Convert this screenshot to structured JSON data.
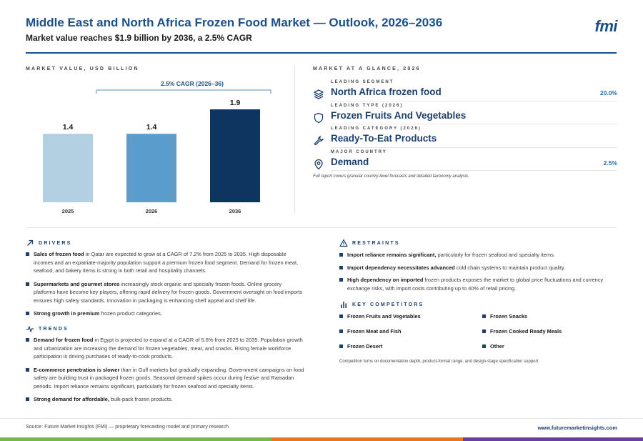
{
  "header": {
    "title": "Middle East and North Africa Frozen Food Market — Outlook, 2026–2036",
    "subtitle": "Market value reaches $1.9 billion by 2036, a 2.5% CAGR",
    "logo": "fmi"
  },
  "chart_section_label": "MARKET VALUE, USD BILLION",
  "chart_data": {
    "type": "bar",
    "categories": [
      "2025",
      "2026",
      "2036"
    ],
    "values": [
      1.4,
      1.4,
      1.9
    ],
    "value_labels": [
      "1.4",
      "1.4",
      "1.9"
    ],
    "colors": [
      "#b3cfe2",
      "#5a9ccb",
      "#0e3560"
    ],
    "annotation": "2.5% CAGR (2026–36)",
    "ylim": [
      0,
      1.9
    ],
    "title": "",
    "xlabel": "",
    "ylabel": ""
  },
  "glance": {
    "section_label": "MARKET AT A GLANCE, 2026",
    "items": [
      {
        "label": "LEADING SEGMENT",
        "value": "North Africa frozen food",
        "metric": "20.0%",
        "icon": "layers-icon"
      },
      {
        "label": "LEADING TYPE (2026)",
        "value": "Frozen Fruits And Vegetables",
        "metric": "",
        "icon": "shield-icon"
      },
      {
        "label": "LEADING CATEGORY (2026)",
        "value": "Ready-To-Eat Products",
        "metric": "",
        "icon": "wrench-icon"
      },
      {
        "label": "MAJOR COUNTRY",
        "value": "Demand",
        "metric": "2.5%",
        "icon": "map-pin-icon"
      }
    ],
    "note": "Full report covers granular country-level forecasts and detailed taxonomy analysis."
  },
  "drivers": {
    "heading": "DRIVERS",
    "items": [
      {
        "bold": "Sales of frozen food",
        "text": " in Qatar are expected to grow at a CAGR of 7.2% from 2025 to 2035. High disposable incomes and an expatriate-majority population support a premium frozen food segment. Demand for frozen meat, seafood, and bakery items is strong in both retail and hospitality channels."
      },
      {
        "bold": "Supermarkets and gourmet stores",
        "text": " increasingly stock organic and specialty frozen foods. Online grocery platforms have become key players, offering rapid delivery for frozen goods. Government oversight on food imports ensures high safety standards. Innovation in packaging is enhancing shelf appeal and shelf life."
      },
      {
        "bold": "Strong growth in premium",
        "text": " frozen product categories."
      }
    ]
  },
  "trends": {
    "heading": "TRENDS",
    "items": [
      {
        "bold": "Demand for frozen food",
        "text": " in Egypt is projected to expand at a CAGR of 5.6% from 2025 to 2035. Population growth and urbanization are increasing the demand for frozen vegetables, meat, and snacks. Rising female workforce participation is driving purchases of ready-to-cook products."
      },
      {
        "bold": "E-commerce penetration is slower",
        "text": " than in Gulf markets but gradually expanding. Government campaigns on food safety are building trust in packaged frozen goods. Seasonal demand spikes occur during festive and Ramadan periods. Import reliance remains significant, particularly for frozen seafood and specialty items."
      },
      {
        "bold": "Strong demand for affordable,",
        "text": " bulk-pack frozen products."
      }
    ]
  },
  "restraints": {
    "heading": "RESTRAINTS",
    "items": [
      {
        "bold": "Import reliance remains significant,",
        "text": " particularly for frozen seafood and specialty items."
      },
      {
        "bold": "Import dependency necessitates advanced",
        "text": " cold chain systems to maintain product quality."
      },
      {
        "bold": "High dependency on imported",
        "text": " frozen products exposes the market to global price fluctuations and currency exchange risks, with import costs contributing up to 40% of retail pricing."
      }
    ]
  },
  "competitors": {
    "heading": "KEY COMPETITORS",
    "items": [
      "Frozen Fruits and Vegetables",
      "Frozen Snacks",
      "Frozen Meat and Fish",
      "Frozen Cooked Ready Meals",
      "Frozen Desert",
      "Other"
    ],
    "note": "Competition turns on documentation depth, product-format range, and design-stage specification support."
  },
  "footer": {
    "source": "Source: Future Market Insights (FMI) — proprietary forecasting model and primary research",
    "url": "www.futuremarketinsights.com"
  },
  "stripe_colors": [
    "#7ab648",
    "#e87722",
    "#6b3fa0"
  ]
}
